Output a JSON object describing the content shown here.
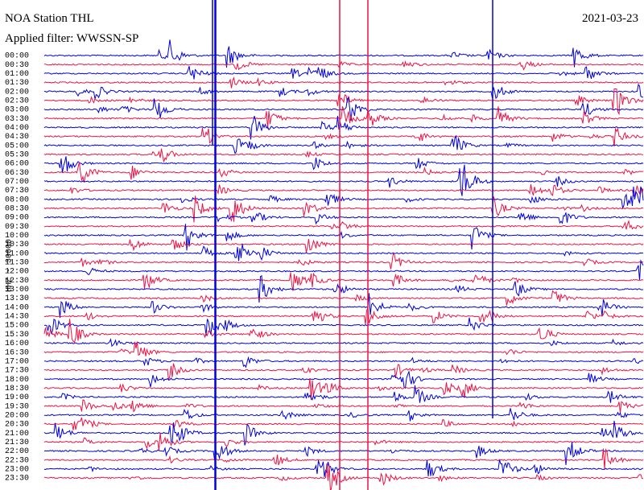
{
  "header": {
    "station": "NOA Station THL",
    "filter": "Applied filter: WWSSN-SP",
    "date": "2021-03-23"
  },
  "axis_label": "HHZ - 30000",
  "rows": [
    "00:00",
    "00:30",
    "01:00",
    "01:30",
    "02:00",
    "02:30",
    "03:00",
    "03:30",
    "04:00",
    "04:30",
    "05:00",
    "05:30",
    "06:00",
    "06:30",
    "07:00",
    "07:30",
    "08:00",
    "08:30",
    "09:00",
    "09:30",
    "10:00",
    "10:30",
    "11:00",
    "11:30",
    "12:00",
    "12:30",
    "13:00",
    "13:30",
    "14:00",
    "14:30",
    "15:00",
    "15:30",
    "16:00",
    "16:30",
    "17:00",
    "17:30",
    "18:00",
    "18:30",
    "19:00",
    "19:30",
    "20:00",
    "20:30",
    "21:00",
    "21:30",
    "22:00",
    "22:30",
    "23:00",
    "23:30"
  ]
}
